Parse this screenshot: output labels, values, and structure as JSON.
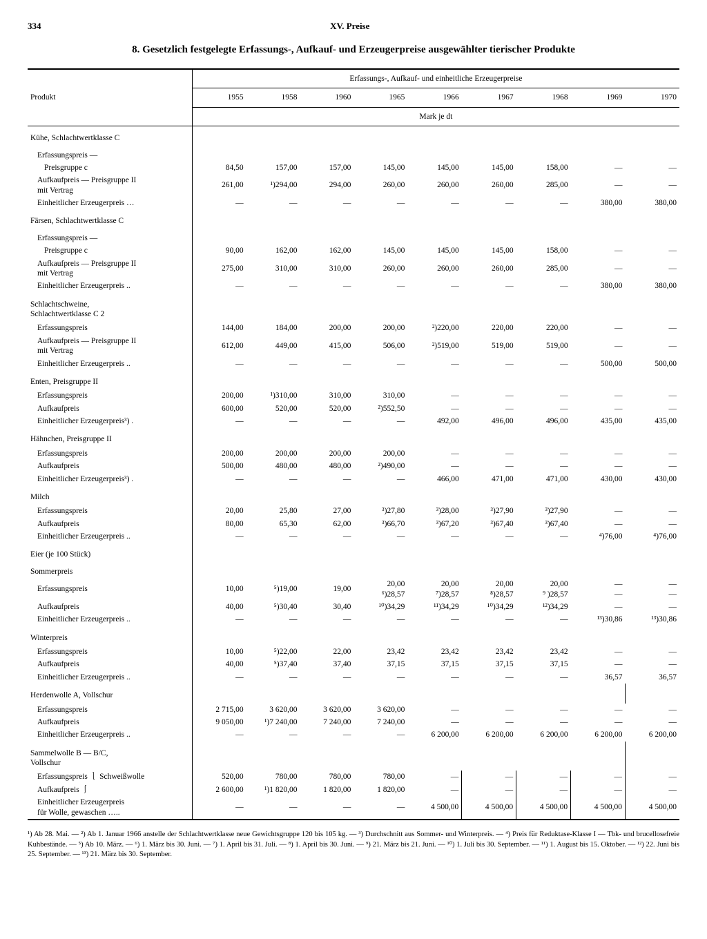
{
  "page_number": "334",
  "chapter": "XV. Preise",
  "title": "8. Gesetzlich festgelegte Erfassungs-, Aufkauf- und Erzeugerpreise ausgewählter tierischer Produkte",
  "header": {
    "product": "Produkt",
    "span": "Erfassungs-, Aufkauf- und einheitliche Erzeugerpreise",
    "unit": "Mark je dt",
    "years": [
      "1955",
      "1958",
      "1960",
      "1965",
      "1966",
      "1967",
      "1968",
      "1969",
      "1970"
    ]
  },
  "sections": [
    {
      "label": "Kühe, Schlachtwertklasse C",
      "sub": "Erfassungspreis —",
      "rows": [
        {
          "label": "Preisgruppe c",
          "indent": 2,
          "v": [
            "84,50",
            "157,00",
            "157,00",
            "145,00",
            "145,00",
            "145,00",
            "158,00",
            "—",
            "—"
          ]
        },
        {
          "label": "Aufkaufpreis — Preisgruppe II\nmit Vertrag",
          "indent": 1,
          "v": [
            "261,00",
            "¹)294,00",
            "294,00",
            "260,00",
            "260,00",
            "260,00",
            "285,00",
            "—",
            "—"
          ]
        },
        {
          "label": "Einheitlicher Erzeugerpreis …",
          "indent": 1,
          "v": [
            "—",
            "—",
            "—",
            "—",
            "—",
            "—",
            "—",
            "380,00",
            "380,00"
          ]
        }
      ]
    },
    {
      "label": "Färsen, Schlachtwertklasse C",
      "sub": "Erfassungspreis —",
      "rows": [
        {
          "label": "Preisgruppe c",
          "indent": 2,
          "v": [
            "90,00",
            "162,00",
            "162,00",
            "145,00",
            "145,00",
            "145,00",
            "158,00",
            "—",
            "—"
          ]
        },
        {
          "label": "Aufkaufpreis — Preisgruppe II\nmit Vertrag",
          "indent": 1,
          "v": [
            "275,00",
            "310,00",
            "310,00",
            "260,00",
            "260,00",
            "260,00",
            "285,00",
            "—",
            "—"
          ]
        },
        {
          "label": "Einheitlicher Erzeugerpreis ..",
          "indent": 1,
          "v": [
            "—",
            "—",
            "—",
            "—",
            "—",
            "—",
            "—",
            "380,00",
            "380,00"
          ]
        }
      ]
    },
    {
      "label": "Schlachtschweine,\nSchlachtwertklasse C 2",
      "rows": [
        {
          "label": "Erfassungspreis",
          "indent": 1,
          "v": [
            "144,00",
            "184,00",
            "200,00",
            "200,00",
            "²)220,00",
            "220,00",
            "220,00",
            "—",
            "—"
          ]
        },
        {
          "label": "Aufkaufpreis — Preisgruppe II\nmit Vertrag",
          "indent": 1,
          "v": [
            "612,00",
            "449,00",
            "415,00",
            "506,00",
            "²)519,00",
            "519,00",
            "519,00",
            "—",
            "—"
          ]
        },
        {
          "label": "Einheitlicher Erzeugerpreis ..",
          "indent": 1,
          "v": [
            "—",
            "—",
            "—",
            "—",
            "—",
            "—",
            "—",
            "500,00",
            "500,00"
          ]
        }
      ]
    },
    {
      "label": "Enten, Preisgruppe II",
      "rows": [
        {
          "label": "Erfassungspreis",
          "indent": 1,
          "v": [
            "200,00",
            "¹)310,00",
            "310,00",
            "310,00",
            "—",
            "—",
            "—",
            "—",
            "—"
          ]
        },
        {
          "label": "Aufkaufpreis",
          "indent": 1,
          "v": [
            "600,00",
            "520,00",
            "520,00",
            "²)552,50",
            "—",
            "—",
            "—",
            "—",
            "—"
          ]
        },
        {
          "label": "Einheitlicher Erzeugerpreis³) .",
          "indent": 1,
          "v": [
            "—",
            "—",
            "—",
            "—",
            "492,00",
            "496,00",
            "496,00",
            "435,00",
            "435,00"
          ]
        }
      ]
    },
    {
      "label": "Hähnchen, Preisgruppe II",
      "rows": [
        {
          "label": "Erfassungspreis",
          "indent": 1,
          "v": [
            "200,00",
            "200,00",
            "200,00",
            "200,00",
            "—",
            "—",
            "—",
            "—",
            "—"
          ]
        },
        {
          "label": "Aufkaufpreis",
          "indent": 1,
          "v": [
            "500,00",
            "480,00",
            "480,00",
            "²)490,00",
            "—",
            "—",
            "—",
            "—",
            "—"
          ]
        },
        {
          "label": "Einheitlicher Erzeugerpreis³) .",
          "indent": 1,
          "v": [
            "—",
            "—",
            "—",
            "—",
            "466,00",
            "471,00",
            "471,00",
            "430,00",
            "430,00"
          ]
        }
      ]
    },
    {
      "label": "Milch",
      "rows": [
        {
          "label": "Erfassungspreis",
          "indent": 1,
          "v": [
            "20,00",
            "25,80",
            "27,00",
            "³)27,80",
            "³)28,00",
            "³)27,90",
            "³)27,90",
            "—",
            "—"
          ]
        },
        {
          "label": "Aufkaufpreis",
          "indent": 1,
          "v": [
            "80,00",
            "65,30",
            "62,00",
            "³)66,70",
            "³)67,20",
            "³)67,40",
            "³)67,40",
            "—",
            "—"
          ]
        },
        {
          "label": "Einheitlicher Erzeugerpreis ..",
          "indent": 1,
          "v": [
            "—",
            "—",
            "—",
            "—",
            "—",
            "—",
            "—",
            "⁴)76,00",
            "⁴)76,00"
          ]
        }
      ]
    },
    {
      "label": "Eier (je 100 Stück)",
      "sub2": "Sommerpreis",
      "rows": [
        {
          "label": "Erfassungspreis",
          "indent": 1,
          "v": [
            "10,00",
            "⁵)19,00",
            "19,00",
            "20,00\n⁶)28,57",
            "20,00\n⁷)28,57",
            "20,00\n⁸)28,57",
            "20,00\n⁹ )28,57",
            "—\n—",
            "—\n—"
          ]
        },
        {
          "label": "Aufkaufpreis",
          "indent": 1,
          "v": [
            "40,00",
            "⁵)30,40",
            "30,40",
            "¹⁰)34,29",
            "¹¹)34,29",
            "¹⁰)34,29",
            "¹²)34,29",
            "—",
            "—"
          ]
        },
        {
          "label": "Einheitlicher Erzeugerpreis ..",
          "indent": 1,
          "v": [
            "—",
            "—",
            "—",
            "—",
            "—",
            "—",
            "—",
            "¹³)30,86",
            "¹³)30,86"
          ]
        }
      ]
    },
    {
      "label": "Winterpreis",
      "rows": [
        {
          "label": "Erfassungspreis",
          "indent": 1,
          "v": [
            "10,00",
            "⁵)22,00",
            "22,00",
            "23,42",
            "23,42",
            "23,42",
            "23,42",
            "—",
            "—"
          ]
        },
        {
          "label": "Aufkaufpreis",
          "indent": 1,
          "v": [
            "40,00",
            "⁵)37,40",
            "37,40",
            "37,15",
            "37,15",
            "37,15",
            "37,15",
            "—",
            "—"
          ]
        },
        {
          "label": "Einheitlicher Erzeugerpreis ..",
          "indent": 1,
          "v": [
            "—",
            "—",
            "—",
            "—",
            "—",
            "—",
            "—",
            "36,57",
            "36,57"
          ]
        }
      ]
    },
    {
      "label": "Herdenwolle A, Vollschur",
      "rows": [
        {
          "label": "Erfassungspreis",
          "indent": 1,
          "v": [
            "2 715,00",
            "3 620,00",
            "3 620,00",
            "3 620,00",
            "—",
            "—",
            "—",
            "—",
            "—"
          ]
        },
        {
          "label": "Aufkaufpreis",
          "indent": 1,
          "v": [
            "9 050,00",
            "¹)7 240,00",
            "7 240,00",
            "7 240,00",
            "—",
            "—",
            "—",
            "—",
            "—"
          ]
        },
        {
          "label": "Einheitlicher Erzeugerpreis ..",
          "indent": 1,
          "v": [
            "—",
            "—",
            "—",
            "—",
            "6 200,00",
            "6 200,00",
            "6 200,00",
            "6 200,00",
            "6 200,00"
          ]
        }
      ]
    },
    {
      "label": "Sammelwolle B — B/C,\nVollschur",
      "rows": [
        {
          "label": "Erfassungspreis ⎱ Schweißwolle",
          "indent": 1,
          "brace": true,
          "v": [
            "520,00",
            "780,00",
            "780,00",
            "780,00",
            "—",
            "—",
            "—",
            "—",
            "—"
          ]
        },
        {
          "label": "Aufkaufpreis    ⎰",
          "indent": 1,
          "v": [
            "2 600,00",
            "¹)1 820,00",
            "1 820,00",
            "1 820,00",
            "—",
            "—",
            "—",
            "—",
            "—"
          ]
        },
        {
          "label": "Einheitlicher Erzeugerpreis\n für Wolle, gewaschen  …..",
          "indent": 1,
          "v": [
            "—",
            "—",
            "—",
            "—",
            "4 500,00",
            "4 500,00",
            "4 500,00",
            "4 500,00",
            "4 500,00"
          ]
        }
      ]
    }
  ],
  "footnotes": "¹) Ab 28. Mai. — ²) Ab 1. Januar 1966 anstelle der Schlachtwertklasse neue Gewichtsgruppe 120 bis 105 kg. — ³) Durchschnitt aus Sommer- und Winterpreis. — ⁴) Preis für Reduktase-Klasse I — Tbk- und brucellosefreie Kuhbestände. — ⁵) Ab 10. März. — ⁶) 1. März bis 30. Juni. — ⁷) 1. April bis 31. Juli. — ⁸) 1. April bis 30. Juni. — ⁹) 21. März bis 21. Juni. — ¹⁰) 1. Juli bis 30. September. — ¹¹) 1. August bis 15. Oktober. — ¹²) 22. Juni bis 25. September. — ¹³) 21. März bis 30. September."
}
